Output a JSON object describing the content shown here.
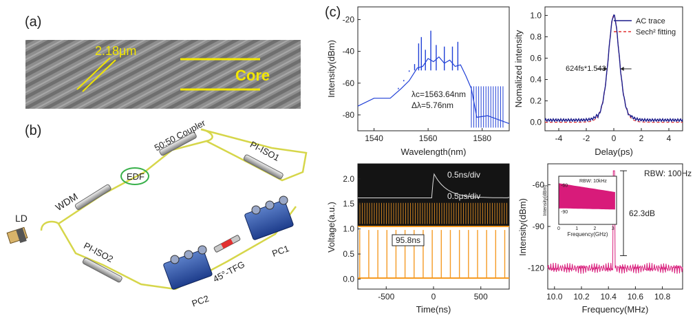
{
  "panels": {
    "a": {
      "label": "(a)",
      "scale_text": "2.18μm",
      "core_text": "Core"
    },
    "b": {
      "label": "(b)",
      "components": {
        "ld": "LD",
        "wdm": "WDM",
        "edf": "EDF",
        "coupler": "50:50 Coupler",
        "pi_iso1": "PI-ISO1",
        "pi_iso2": "PI-ISO2",
        "pc1": "PC1",
        "pc2": "PC2",
        "tfg": "45°-TFG"
      }
    },
    "c": {
      "label": "(c)"
    }
  },
  "chart_data": [
    {
      "id": "spectrum",
      "type": "line",
      "title": "",
      "xlabel": "Wavelength(nm)",
      "ylabel": "Intensity(dBm)",
      "xlim": [
        1534,
        1590
      ],
      "ylim": [
        -90,
        -12
      ],
      "xticks": [
        1540,
        1560,
        1580
      ],
      "yticks": [
        -80,
        -60,
        -40,
        -20
      ],
      "color": "#1f3fd6",
      "annotations": [
        "λc=1563.64nm",
        "Δλ=5.76nm"
      ],
      "x": [
        1534,
        1540,
        1546,
        1550,
        1553,
        1556,
        1558,
        1560,
        1562,
        1564,
        1566,
        1568,
        1570,
        1572,
        1574,
        1576,
        1578,
        1582,
        1590
      ],
      "y": [
        -73,
        -71,
        -68,
        -65,
        -57,
        -52,
        -48,
        -46,
        -45,
        -45,
        -46,
        -47,
        -48,
        -50,
        -54,
        -65,
        -80,
        -82,
        -84
      ],
      "peaks": [
        [
          1549,
          -63
        ],
        [
          1551,
          -58
        ],
        [
          1553,
          -52
        ],
        [
          1555,
          -48
        ],
        [
          1556.5,
          -35
        ],
        [
          1557.5,
          -31
        ],
        [
          1559,
          -39
        ],
        [
          1561,
          -27
        ],
        [
          1563,
          -36
        ],
        [
          1566,
          -37
        ],
        [
          1569,
          -37
        ],
        [
          1571,
          -34
        ]
      ]
    },
    {
      "id": "autocorrelation",
      "type": "line",
      "title": "",
      "xlabel": "Delay(ps)",
      "ylabel": "Nomalized intensity",
      "xlim": [
        -5,
        5
      ],
      "ylim": [
        -0.08,
        1.08
      ],
      "xticks": [
        -4,
        -2,
        0,
        2,
        4
      ],
      "yticks": [
        0.0,
        0.2,
        0.4,
        0.6,
        0.8,
        1.0
      ],
      "legend": "top-right",
      "annotation": "624fs*1.543",
      "series": [
        {
          "name": "AC trace",
          "color": "#1a1a8a",
          "fwhm_ps": 0.963
        },
        {
          "name": "Sech² fitting",
          "color": "#e03030",
          "fwhm_ps": 0.963
        }
      ]
    },
    {
      "id": "pulse_train",
      "type": "line",
      "title": "",
      "xlabel": "Time(ns)",
      "ylabel": "Voltage(a.u.)",
      "xlim": [
        -800,
        800
      ],
      "ylim": [
        -0.2,
        2.3
      ],
      "xticks": [
        -500,
        0,
        500
      ],
      "yticks": [
        0.0,
        0.5,
        1.0,
        1.5,
        2.0
      ],
      "color": "#f59a23",
      "period_ns": 95.8,
      "annotation": "95.8ns",
      "inset_labels": [
        "0.5ns/div",
        "0.5μs/div"
      ]
    },
    {
      "id": "rf_spectrum",
      "type": "line",
      "title": "",
      "xlabel": "Frequency(MHz)",
      "ylabel": "Intensity(dBm)",
      "xlim": [
        9.95,
        10.95
      ],
      "ylim": [
        -135,
        -45
      ],
      "xticks": [
        10.0,
        10.2,
        10.4,
        10.6,
        10.8
      ],
      "yticks": [
        -120,
        -90,
        -60
      ],
      "color": "#d81b7a",
      "peak_freq_mhz": 10.44,
      "peak_dbm": -50,
      "noise_floor_dbm": -120,
      "snr_text": "62.3dB",
      "rbw_text": "RBW: 100Hz",
      "inset": {
        "rbw_text": "RBW: 10kHz",
        "xlabel": "Frequency(GHz)",
        "ylabel": "Intensity(dBm)",
        "xticks": [
          0,
          1,
          2,
          3
        ],
        "yticks": [
          -60,
          -90
        ]
      }
    }
  ]
}
